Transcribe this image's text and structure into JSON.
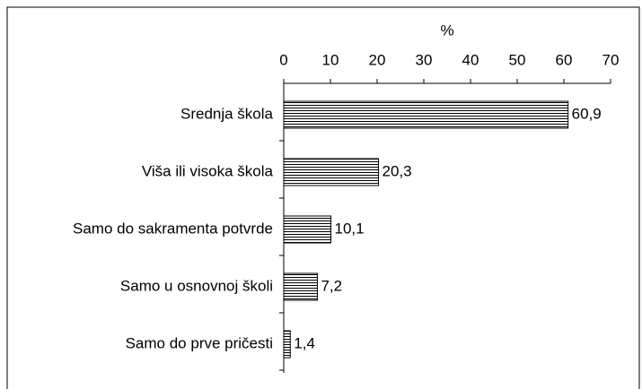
{
  "chart_data": {
    "type": "bar",
    "orientation": "horizontal",
    "x_label": "%",
    "categories": [
      "Srednja škola",
      "Viša ili visoka škola",
      "Samo do sakramenta potvrde",
      "Samo u osnovnoj školi",
      "Samo do prve pričesti"
    ],
    "values": [
      60.9,
      20.3,
      10.1,
      7.2,
      1.4
    ],
    "value_labels": [
      "60,9",
      "20,3",
      "10,1",
      "7,2",
      "1,4"
    ],
    "color": "#000000",
    "xlim": [
      0,
      70
    ],
    "xticks": [
      0,
      10,
      20,
      30,
      40,
      50,
      60,
      70
    ]
  }
}
